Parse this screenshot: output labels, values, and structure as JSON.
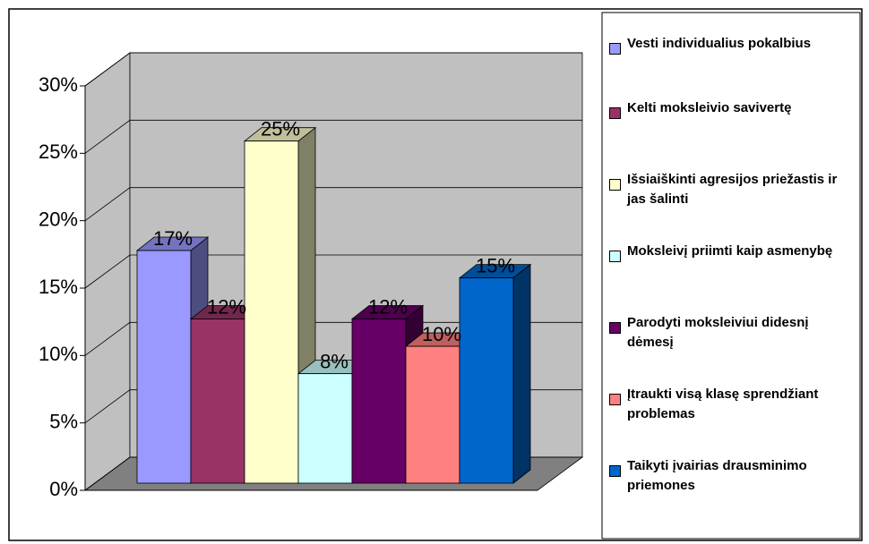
{
  "chart_data": {
    "type": "bar3d",
    "ylim": [
      0,
      30
    ],
    "yticks": [
      {
        "value": 0,
        "label": "0%"
      },
      {
        "value": 5,
        "label": "5%"
      },
      {
        "value": 10,
        "label": "10%"
      },
      {
        "value": 15,
        "label": "15%"
      },
      {
        "value": 20,
        "label": "20%"
      },
      {
        "value": 25,
        "label": "25%"
      },
      {
        "value": 30,
        "label": "30%"
      }
    ],
    "grid": true,
    "legend": "right",
    "series": [
      {
        "name": "Vesti individualius pokalbius",
        "color": "#9999ff",
        "values": [
          17
        ],
        "value_labels": [
          "17%"
        ]
      },
      {
        "name": "Kelti moksleivio savivertę",
        "color": "#993366",
        "values": [
          12
        ],
        "value_labels": [
          "12%"
        ]
      },
      {
        "name": "Išsiaiškinti agresijos priežastis ir  jas šalinti",
        "color": "#ffffcc",
        "values": [
          25
        ],
        "value_labels": [
          "25%"
        ]
      },
      {
        "name": "Moksleivį priimti kaip asmenybę",
        "color": "#ccffff",
        "values": [
          8
        ],
        "value_labels": [
          "8%"
        ]
      },
      {
        "name": "Parodyti moksleiviui didesnį dėmesį",
        "color": "#660066",
        "values": [
          12
        ],
        "value_labels": [
          "12%"
        ]
      },
      {
        "name": "Įtraukti visą klasę sprendžiant problemas",
        "color": "#ff8080",
        "values": [
          10
        ],
        "value_labels": [
          "10%"
        ]
      },
      {
        "name": "Taikyti įvairias drausminimo priemones",
        "color": "#0066cc",
        "values": [
          15
        ],
        "value_labels": [
          "15%"
        ]
      }
    ]
  }
}
